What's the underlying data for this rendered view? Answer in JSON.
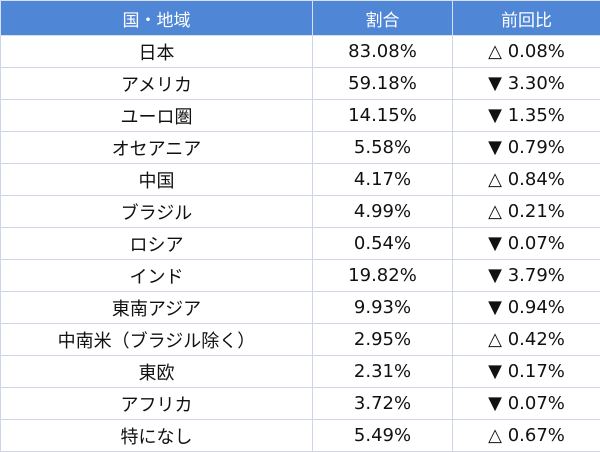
{
  "table": {
    "header": [
      "国・地域",
      "割合",
      "前回比"
    ],
    "rows": [
      [
        "日本",
        "83.08%",
        "△ 0.08%"
      ],
      [
        "アメリカ",
        "59.18%",
        "▼ 3.30%"
      ],
      [
        "ユーロ圏",
        "14.15%",
        "▼ 1.35%"
      ],
      [
        "オセアニア",
        "5.58%",
        "▼ 0.79%"
      ],
      [
        "中国",
        "4.17%",
        "△ 0.84%"
      ],
      [
        "ブラジル",
        "4.99%",
        "△ 0.21%"
      ],
      [
        "ロシア",
        "0.54%",
        "▼ 0.07%"
      ],
      [
        "インド",
        "19.82%",
        "▼ 3.79%"
      ],
      [
        "東南アジア",
        "9.93%",
        "▼ 0.94%"
      ],
      [
        "中南米（ブラジル除く）",
        "2.95%",
        "△ 0.42%"
      ],
      [
        "東欧",
        "2.31%",
        "▼ 0.17%"
      ],
      [
        "アフリカ",
        "3.72%",
        "▼ 0.07%"
      ],
      [
        "特になし",
        "5.49%",
        "△ 0.67%"
      ]
    ]
  }
}
